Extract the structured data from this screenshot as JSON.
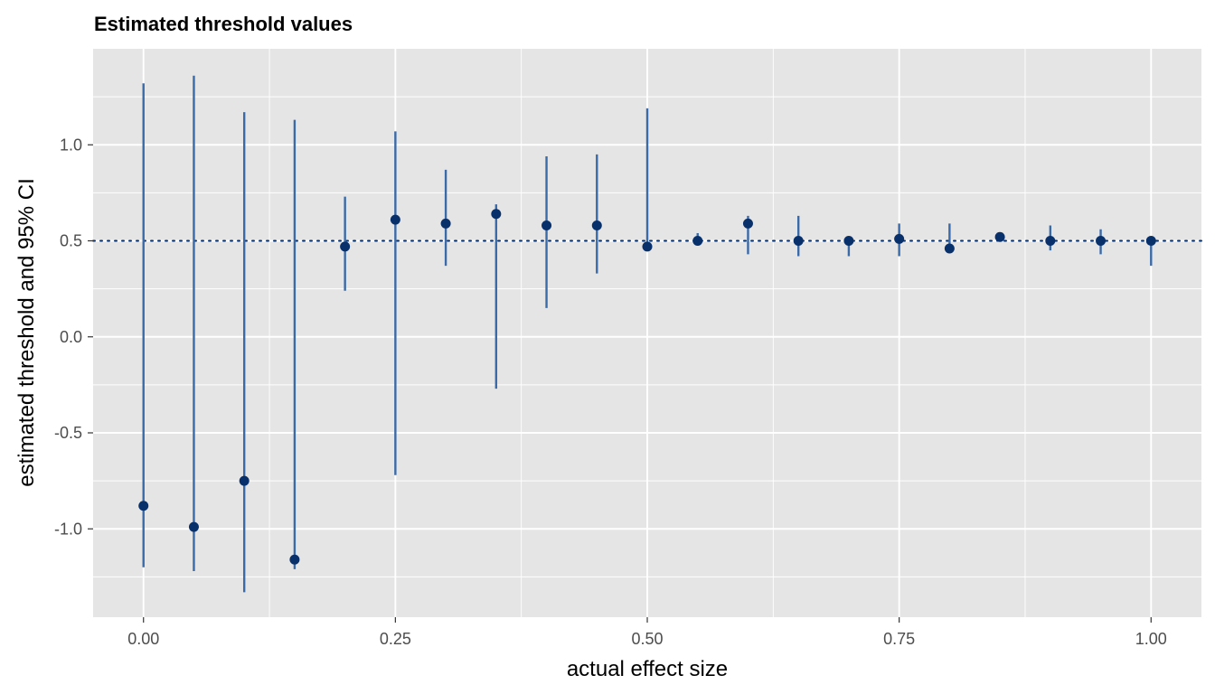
{
  "chart_data": {
    "type": "scatter",
    "title": "Estimated threshold values",
    "xlabel": "actual effect size",
    "ylabel": "estimated threshold and 95% CI",
    "xlim": [
      -0.05,
      1.05
    ],
    "ylim": [
      -1.46,
      1.5
    ],
    "x_ticks": [
      0.0,
      0.25,
      0.5,
      0.75,
      1.0
    ],
    "x_tick_labels": [
      "0.00",
      "0.25",
      "0.50",
      "0.75",
      "1.00"
    ],
    "y_ticks": [
      -1.0,
      -0.5,
      0.0,
      0.5,
      1.0
    ],
    "y_tick_labels": [
      "-1.0",
      "-0.5",
      "0.0",
      "0.5",
      "1.0"
    ],
    "grid": true,
    "panel_background": "#e5e5e5",
    "grid_color": "#ffffff",
    "point_color": "#08306b",
    "errorbar_color": "#3b6aa8",
    "reference_line": {
      "y": 0.5,
      "style": "dotted",
      "color": "#08306b"
    },
    "points": [
      {
        "x": 0.0,
        "y": -0.88,
        "lower": -1.2,
        "upper": 1.32
      },
      {
        "x": 0.05,
        "y": -0.99,
        "lower": -1.22,
        "upper": 1.36
      },
      {
        "x": 0.1,
        "y": -0.75,
        "lower": -1.33,
        "upper": 1.17
      },
      {
        "x": 0.15,
        "y": -1.16,
        "lower": -1.21,
        "upper": 1.13
      },
      {
        "x": 0.2,
        "y": 0.47,
        "lower": 0.24,
        "upper": 0.73
      },
      {
        "x": 0.25,
        "y": 0.61,
        "lower": -0.72,
        "upper": 1.07
      },
      {
        "x": 0.3,
        "y": 0.59,
        "lower": 0.37,
        "upper": 0.87
      },
      {
        "x": 0.35,
        "y": 0.64,
        "lower": -0.27,
        "upper": 0.69
      },
      {
        "x": 0.4,
        "y": 0.58,
        "lower": 0.15,
        "upper": 0.94
      },
      {
        "x": 0.45,
        "y": 0.58,
        "lower": 0.33,
        "upper": 0.95
      },
      {
        "x": 0.5,
        "y": 0.47,
        "lower": 0.47,
        "upper": 1.19
      },
      {
        "x": 0.55,
        "y": 0.5,
        "lower": 0.49,
        "upper": 0.54
      },
      {
        "x": 0.6,
        "y": 0.59,
        "lower": 0.43,
        "upper": 0.63
      },
      {
        "x": 0.65,
        "y": 0.5,
        "lower": 0.42,
        "upper": 0.63
      },
      {
        "x": 0.7,
        "y": 0.5,
        "lower": 0.42,
        "upper": 0.52
      },
      {
        "x": 0.75,
        "y": 0.51,
        "lower": 0.42,
        "upper": 0.59
      },
      {
        "x": 0.8,
        "y": 0.46,
        "lower": 0.44,
        "upper": 0.59
      },
      {
        "x": 0.85,
        "y": 0.52,
        "lower": 0.51,
        "upper": 0.53
      },
      {
        "x": 0.9,
        "y": 0.5,
        "lower": 0.45,
        "upper": 0.58
      },
      {
        "x": 0.95,
        "y": 0.5,
        "lower": 0.43,
        "upper": 0.56
      },
      {
        "x": 1.0,
        "y": 0.5,
        "lower": 0.37,
        "upper": 0.51
      }
    ]
  }
}
